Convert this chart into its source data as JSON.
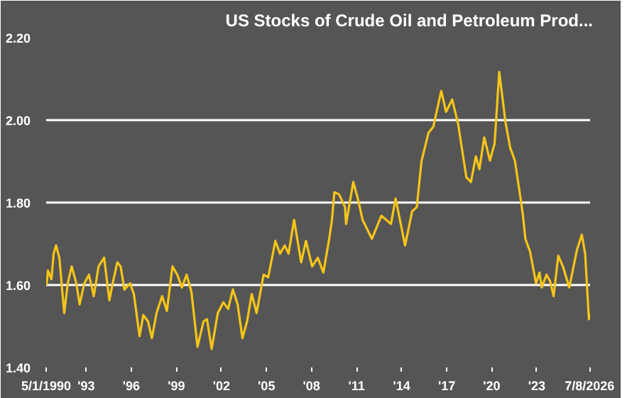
{
  "chart_data": {
    "type": "line",
    "title": "US Stocks of Crude Oil and Petroleum Prod...",
    "x": [
      1990.36,
      1990.45,
      1990.68,
      1990.83,
      1990.99,
      1991.21,
      1991.53,
      1991.77,
      1992.03,
      1992.34,
      1992.56,
      1992.87,
      1993.18,
      1993.5,
      1993.82,
      1994.19,
      1994.54,
      1994.76,
      1995.07,
      1995.29,
      1995.54,
      1995.92,
      1996.17,
      1996.55,
      1996.8,
      1997.11,
      1997.37,
      1997.68,
      1998.05,
      1998.37,
      1998.74,
      1999.06,
      1999.37,
      1999.68,
      2000.0,
      2000.41,
      2000.81,
      2001.04,
      2001.35,
      2001.76,
      2002.13,
      2002.45,
      2002.76,
      2003.08,
      2003.4,
      2003.71,
      2004.02,
      2004.34,
      2004.81,
      2005.12,
      2005.59,
      2005.9,
      2006.22,
      2006.47,
      2006.84,
      2007.31,
      2007.63,
      2008.04,
      2008.42,
      2008.79,
      2009.2,
      2009.36,
      2009.52,
      2009.83,
      2010.23,
      2010.3,
      2010.78,
      2011.08,
      2011.4,
      2012.02,
      2012.65,
      2013.29,
      2013.6,
      2014.23,
      2014.7,
      2015.01,
      2015.32,
      2015.79,
      2016.11,
      2016.42,
      2016.64,
      2016.96,
      2017.37,
      2017.77,
      2018.31,
      2018.62,
      2018.94,
      2019.18,
      2019.5,
      2019.88,
      2020.19,
      2020.5,
      2020.92,
      2021.23,
      2021.54,
      2021.92,
      2022.08,
      2022.24,
      2022.55,
      2022.95,
      2023.18,
      2023.33,
      2023.65,
      2023.89,
      2024.12,
      2024.43,
      2024.74,
      2025.16,
      2025.68,
      2026.0,
      2026.22,
      2026.47,
      2026.53
    ],
    "series": [
      {
        "color": "#f5c518",
        "values": [
          1.6,
          1.635,
          1.614,
          1.676,
          1.696,
          1.666,
          1.532,
          1.604,
          1.645,
          1.604,
          1.553,
          1.604,
          1.625,
          1.573,
          1.645,
          1.666,
          1.563,
          1.604,
          1.655,
          1.645,
          1.589,
          1.604,
          1.578,
          1.476,
          1.527,
          1.512,
          1.471,
          1.532,
          1.573,
          1.537,
          1.645,
          1.625,
          1.594,
          1.625,
          1.584,
          1.45,
          1.512,
          1.517,
          1.445,
          1.532,
          1.558,
          1.542,
          1.589,
          1.553,
          1.471,
          1.512,
          1.578,
          1.532,
          1.625,
          1.619,
          1.707,
          1.676,
          1.696,
          1.676,
          1.758,
          1.655,
          1.707,
          1.645,
          1.666,
          1.63,
          1.717,
          1.758,
          1.825,
          1.82,
          1.789,
          1.748,
          1.85,
          1.81,
          1.758,
          1.712,
          1.768,
          1.748,
          1.81,
          1.696,
          1.779,
          1.789,
          1.9,
          1.969,
          1.984,
          2.035,
          2.071,
          2.02,
          2.05,
          1.989,
          1.861,
          1.85,
          1.912,
          1.881,
          1.958,
          1.902,
          1.943,
          2.117,
          1.994,
          1.933,
          1.902,
          1.81,
          1.768,
          1.712,
          1.681,
          1.604,
          1.63,
          1.594,
          1.625,
          1.609,
          1.573,
          1.671,
          1.645,
          1.594,
          1.686,
          1.722,
          1.676,
          1.517,
          1.532
        ]
      }
    ],
    "xlim": [
      1990.33,
      2026.55
    ],
    "xticks": [
      {
        "value": 1990.33,
        "label": "5/1/1990"
      },
      {
        "value": 1993,
        "label": "'93"
      },
      {
        "value": 1996,
        "label": "'96"
      },
      {
        "value": 1999,
        "label": "'99"
      },
      {
        "value": 2002,
        "label": "'02"
      },
      {
        "value": 2005,
        "label": "'05"
      },
      {
        "value": 2008,
        "label": "'08"
      },
      {
        "value": 2011,
        "label": "'11"
      },
      {
        "value": 2014,
        "label": "'14"
      },
      {
        "value": 2017,
        "label": "'17"
      },
      {
        "value": 2020,
        "label": "'20"
      },
      {
        "value": 2023,
        "label": "'23"
      },
      {
        "value": 2026.52,
        "label": "7/8/2026"
      }
    ],
    "ylim": [
      1.4,
      2.2
    ],
    "yticks": [
      {
        "value": 1.4,
        "label": "1.40"
      },
      {
        "value": 1.6,
        "label": "1.60"
      },
      {
        "value": 1.8,
        "label": "1.80"
      },
      {
        "value": 2.0,
        "label": "2.00"
      },
      {
        "value": 2.2,
        "label": "2.20"
      }
    ],
    "grid": "y",
    "marker": "none",
    "line_style": "solid"
  }
}
